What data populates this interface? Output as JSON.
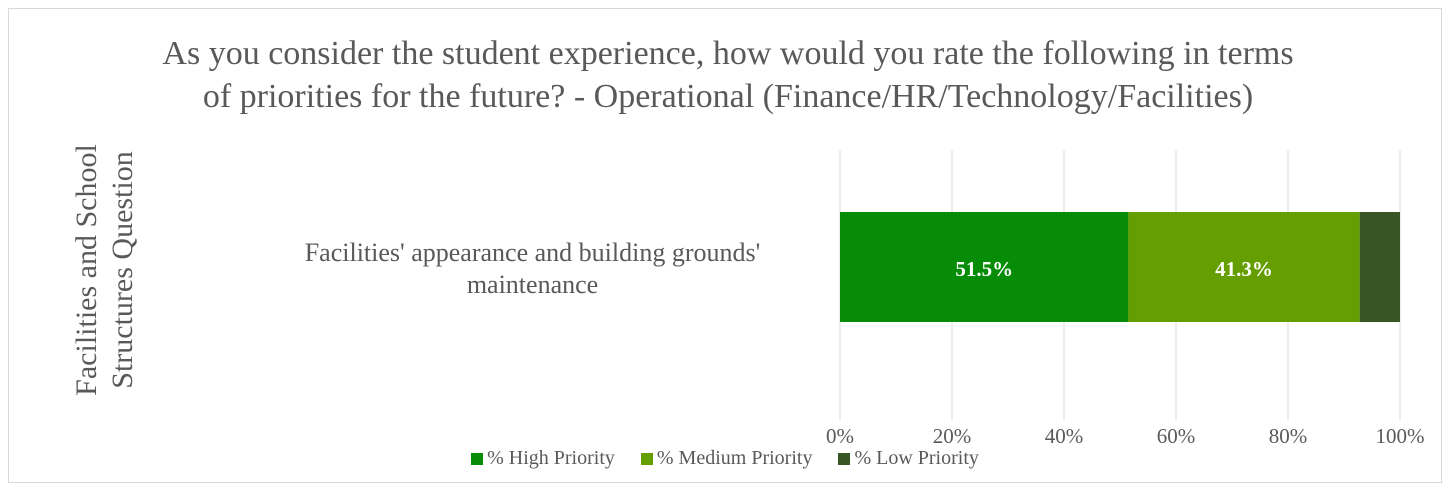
{
  "chart_data": {
    "type": "stacked_bar_horizontal",
    "title": "As you consider the student experience, how would you rate the following in terms of priorities for the future? - Operational (Finance/HR/Technology/Facilities)",
    "y_axis_label": "Facilities and School Structures Question",
    "categories": [
      "Facilities' appearance and building grounds' maintenance"
    ],
    "series": [
      {
        "name": "% High Priority",
        "color": "#078c07",
        "values": [
          51.5
        ],
        "value_labels": [
          "51.5%"
        ]
      },
      {
        "name": "% Medium Priority",
        "color": "#659e00",
        "values": [
          41.3
        ],
        "value_labels": [
          "41.3%"
        ]
      },
      {
        "name": "% Low Priority",
        "color": "#375623",
        "values": [
          7.2
        ]
      }
    ],
    "xlim": [
      0,
      100
    ],
    "xticks": [
      {
        "value": 0,
        "label": "0%"
      },
      {
        "value": 20,
        "label": "20%"
      },
      {
        "value": 40,
        "label": "40%"
      },
      {
        "value": 60,
        "label": "60%"
      },
      {
        "value": 80,
        "label": "80%"
      },
      {
        "value": 100,
        "label": "100%"
      }
    ],
    "grid": true,
    "legend": "bottom"
  }
}
